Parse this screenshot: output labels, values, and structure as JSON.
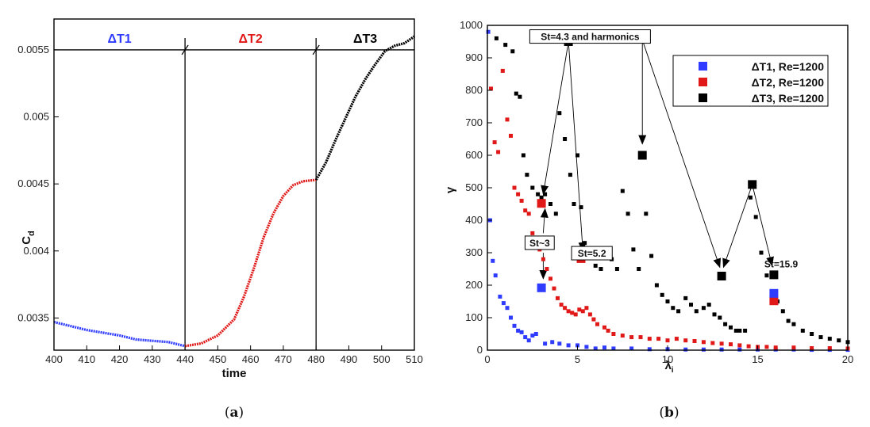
{
  "chart_data": [
    {
      "id": "a",
      "type": "line",
      "caption_open": "(",
      "caption_letter": "a",
      "caption_close": ")",
      "xlabel": "time",
      "ylabel_main": "C",
      "ylabel_sub": "d",
      "xlim": [
        400,
        510
      ],
      "ylim": [
        0.00326,
        0.00573
      ],
      "xticks": [
        "400",
        "410",
        "420",
        "430",
        "440",
        "450",
        "460",
        "470",
        "480",
        "490",
        "500",
        "510"
      ],
      "yticks": [
        {
          "value": 0.0035,
          "label": "0.0035"
        },
        {
          "value": 0.004,
          "label": "0.004"
        },
        {
          "value": 0.0045,
          "label": "0.0045"
        },
        {
          "value": 0.005,
          "label": "0.005"
        },
        {
          "value": 0.0055,
          "label": "0.0055"
        }
      ],
      "hline_y": 0.0055,
      "vlines_x": [
        440,
        480
      ],
      "segments": [
        {
          "label": "ΔT1",
          "color": "#2f3cff",
          "x_from": 400,
          "x_to": 440,
          "points": [
            [
              400,
              0.00347
            ],
            [
              405,
              0.00344
            ],
            [
              410,
              0.00341
            ],
            [
              415,
              0.00339
            ],
            [
              420,
              0.00337
            ],
            [
              425,
              0.00334
            ],
            [
              430,
              0.00333
            ],
            [
              435,
              0.00332
            ],
            [
              440,
              0.00329
            ]
          ]
        },
        {
          "label": "ΔT2",
          "color": "#e01818",
          "x_from": 440,
          "x_to": 480,
          "points": [
            [
              440,
              0.00329
            ],
            [
              445,
              0.00331
            ],
            [
              450,
              0.00337
            ],
            [
              455,
              0.00349
            ],
            [
              458,
              0.00366
            ],
            [
              461,
              0.00387
            ],
            [
              464,
              0.0041
            ],
            [
              467,
              0.00428
            ],
            [
              470,
              0.00441
            ],
            [
              473,
              0.00449
            ],
            [
              476,
              0.00452
            ],
            [
              480,
              0.00453
            ]
          ]
        },
        {
          "label": "ΔT3",
          "color": "#000000",
          "x_from": 480,
          "x_to": 510,
          "points": [
            [
              480,
              0.00453
            ],
            [
              483,
              0.00466
            ],
            [
              486,
              0.00483
            ],
            [
              489,
              0.00499
            ],
            [
              492,
              0.00515
            ],
            [
              495,
              0.00528
            ],
            [
              498,
              0.00539
            ],
            [
              501,
              0.00549
            ],
            [
              504,
              0.00553
            ],
            [
              507,
              0.00555
            ],
            [
              510,
              0.0056
            ]
          ]
        }
      ]
    },
    {
      "id": "b",
      "type": "scatter",
      "caption_open": "(",
      "caption_letter": "b",
      "caption_close": ")",
      "xlabel_main": "λ",
      "xlabel_sub": "i",
      "ylabel": "γ",
      "xlim": [
        0,
        20
      ],
      "ylim": [
        0,
        1000
      ],
      "xticks": [
        "0",
        "5",
        "10",
        "15",
        "20"
      ],
      "yticks": [
        "0",
        "100",
        "200",
        "300",
        "400",
        "500",
        "600",
        "700",
        "800",
        "900",
        "1000"
      ],
      "legend": [
        {
          "label": "ΔT1, Re=1200",
          "color": "#2f3cff"
        },
        {
          "label": "ΔT2, Re=1200",
          "color": "#e01818"
        },
        {
          "label": "ΔT3, Re=1200",
          "color": "#000000"
        }
      ],
      "series": [
        {
          "name": "ΔT1",
          "color": "#2f3cff",
          "points": [
            [
              0.05,
              980
            ],
            [
              0.15,
              400
            ],
            [
              0.3,
              275
            ],
            [
              0.45,
              230
            ],
            [
              0.7,
              165
            ],
            [
              0.9,
              145
            ],
            [
              1.1,
              130
            ],
            [
              1.3,
              100
            ],
            [
              1.5,
              75
            ],
            [
              1.7,
              60
            ],
            [
              1.9,
              55
            ],
            [
              2.1,
              40
            ],
            [
              2.3,
              30
            ],
            [
              2.5,
              45
            ],
            [
              2.7,
              50
            ],
            [
              3.2,
              20
            ],
            [
              3.6,
              25
            ],
            [
              4.0,
              20
            ],
            [
              4.5,
              15
            ],
            [
              5.0,
              15
            ],
            [
              5.5,
              10
            ],
            [
              6.0,
              5
            ],
            [
              6.5,
              8
            ],
            [
              7.0,
              5
            ],
            [
              8.0,
              5
            ],
            [
              9.0,
              3
            ],
            [
              10.0,
              3
            ],
            [
              11.0,
              2
            ],
            [
              12.0,
              2
            ],
            [
              13.0,
              2
            ],
            [
              14.0,
              2
            ],
            [
              15.0,
              2
            ],
            [
              16.0,
              2
            ],
            [
              17.0,
              2
            ],
            [
              18.0,
              1
            ],
            [
              19.0,
              1
            ],
            [
              20.0,
              1
            ]
          ]
        },
        {
          "name": "ΔT2",
          "color": "#e01818",
          "points": [
            [
              0.2,
              805
            ],
            [
              0.4,
              640
            ],
            [
              0.6,
              610
            ],
            [
              0.85,
              860
            ],
            [
              1.1,
              710
            ],
            [
              1.3,
              660
            ],
            [
              1.5,
              500
            ],
            [
              1.7,
              480
            ],
            [
              1.9,
              460
            ],
            [
              2.1,
              430
            ],
            [
              2.3,
              420
            ],
            [
              2.5,
              360
            ],
            [
              2.7,
              330
            ],
            [
              2.9,
              310
            ],
            [
              3.1,
              280
            ],
            [
              3.3,
              250
            ],
            [
              3.5,
              220
            ],
            [
              3.7,
              190
            ],
            [
              3.9,
              160
            ],
            [
              4.1,
              140
            ],
            [
              4.3,
              130
            ],
            [
              4.5,
              120
            ],
            [
              4.7,
              115
            ],
            [
              4.9,
              110
            ],
            [
              5.1,
              125
            ],
            [
              5.3,
              120
            ],
            [
              5.5,
              130
            ],
            [
              5.7,
              110
            ],
            [
              5.9,
              95
            ],
            [
              6.1,
              80
            ],
            [
              6.5,
              70
            ],
            [
              6.7,
              60
            ],
            [
              7.0,
              50
            ],
            [
              7.5,
              45
            ],
            [
              8.0,
              40
            ],
            [
              8.5,
              40
            ],
            [
              9.0,
              35
            ],
            [
              9.5,
              35
            ],
            [
              10.0,
              30
            ],
            [
              10.5,
              35
            ],
            [
              11.0,
              30
            ],
            [
              11.5,
              28
            ],
            [
              12.0,
              25
            ],
            [
              12.5,
              22
            ],
            [
              13.0,
              20
            ],
            [
              13.5,
              18
            ],
            [
              14.0,
              15
            ],
            [
              14.5,
              12
            ],
            [
              15.0,
              10
            ],
            [
              15.5,
              10
            ],
            [
              16.0,
              8
            ],
            [
              17.0,
              8
            ],
            [
              18.0,
              6
            ],
            [
              19.0,
              6
            ],
            [
              20.0,
              5
            ]
          ]
        },
        {
          "name": "ΔT3",
          "color": "#000000",
          "points": [
            [
              0.5,
              960
            ],
            [
              1.0,
              940
            ],
            [
              1.4,
              920
            ],
            [
              1.6,
              790
            ],
            [
              1.8,
              780
            ],
            [
              2.0,
              600
            ],
            [
              2.2,
              540
            ],
            [
              2.5,
              500
            ],
            [
              2.8,
              480
            ],
            [
              3.0,
              470
            ],
            [
              3.2,
              480
            ],
            [
              3.5,
              450
            ],
            [
              3.8,
              420
            ],
            [
              4.0,
              730
            ],
            [
              4.3,
              650
            ],
            [
              4.6,
              540
            ],
            [
              4.8,
              450
            ],
            [
              5.0,
              600
            ],
            [
              5.2,
              440
            ],
            [
              5.4,
              330
            ],
            [
              5.6,
              310
            ],
            [
              5.8,
              300
            ],
            [
              6.0,
              260
            ],
            [
              6.3,
              250
            ],
            [
              6.6,
              310
            ],
            [
              6.9,
              280
            ],
            [
              7.2,
              250
            ],
            [
              7.5,
              490
            ],
            [
              7.8,
              420
            ],
            [
              8.1,
              310
            ],
            [
              8.4,
              250
            ],
            [
              8.8,
              420
            ],
            [
              9.1,
              290
            ],
            [
              9.4,
              200
            ],
            [
              9.7,
              170
            ],
            [
              10.0,
              150
            ],
            [
              10.3,
              130
            ],
            [
              10.6,
              120
            ],
            [
              11.0,
              160
            ],
            [
              11.3,
              140
            ],
            [
              11.6,
              120
            ],
            [
              12.0,
              130
            ],
            [
              12.3,
              140
            ],
            [
              12.6,
              110
            ],
            [
              12.9,
              100
            ],
            [
              13.2,
              80
            ],
            [
              13.5,
              70
            ],
            [
              13.8,
              60
            ],
            [
              14.0,
              60
            ],
            [
              14.3,
              60
            ],
            [
              14.6,
              470
            ],
            [
              14.9,
              410
            ],
            [
              15.2,
              300
            ],
            [
              15.5,
              230
            ],
            [
              15.8,
              180
            ],
            [
              16.1,
              150
            ],
            [
              16.4,
              120
            ],
            [
              16.7,
              90
            ],
            [
              17.0,
              80
            ],
            [
              17.5,
              60
            ],
            [
              18.0,
              50
            ],
            [
              18.5,
              40
            ],
            [
              19.0,
              35
            ],
            [
              19.5,
              30
            ],
            [
              20.0,
              25
            ]
          ]
        }
      ],
      "highlights": [
        {
          "series": "ΔT3",
          "x": 4.5,
          "y": 950
        },
        {
          "series": "ΔT3",
          "x": 8.6,
          "y": 600
        },
        {
          "series": "ΔT3",
          "x": 14.7,
          "y": 510
        },
        {
          "series": "ΔT3",
          "x": 13.0,
          "y": 228
        },
        {
          "series": "ΔT3",
          "x": 15.9,
          "y": 232
        },
        {
          "series": "ΔT2",
          "x": 3.0,
          "y": 452
        },
        {
          "series": "ΔT2",
          "x": 5.2,
          "y": 282
        },
        {
          "series": "ΔT2",
          "x": 15.9,
          "y": 152
        },
        {
          "series": "ΔT1",
          "x": 3.0,
          "y": 192
        },
        {
          "series": "ΔT1",
          "x": 15.9,
          "y": 175
        }
      ],
      "annotations": [
        {
          "text": "St=4.3 and harmonics",
          "boxed": true,
          "x": 5.7,
          "y": 962
        },
        {
          "text": "St~3",
          "boxed": true,
          "x": 2.9,
          "y": 327
        },
        {
          "text": "St=5.2",
          "boxed": true,
          "x": 5.8,
          "y": 295
        },
        {
          "text": "St=15.9",
          "boxed": false,
          "x": 16.3,
          "y": 262
        }
      ],
      "arrows": [
        {
          "from": [
            4.5,
            950
          ],
          "to": [
            3.1,
            480
          ]
        },
        {
          "from": [
            4.5,
            950
          ],
          "to": [
            5.3,
            305
          ]
        },
        {
          "from": [
            8.6,
            955
          ],
          "to": [
            8.6,
            635
          ]
        },
        {
          "from": [
            8.6,
            955
          ],
          "to": [
            12.9,
            255
          ]
        },
        {
          "from": [
            14.7,
            510
          ],
          "to": [
            13.1,
            255
          ]
        },
        {
          "from": [
            14.7,
            510
          ],
          "to": [
            15.8,
            260
          ]
        },
        {
          "from": [
            3.1,
            360
          ],
          "to": [
            3.2,
            435
          ]
        },
        {
          "from": [
            3.1,
            300
          ],
          "to": [
            3.1,
            220
          ]
        }
      ]
    }
  ]
}
